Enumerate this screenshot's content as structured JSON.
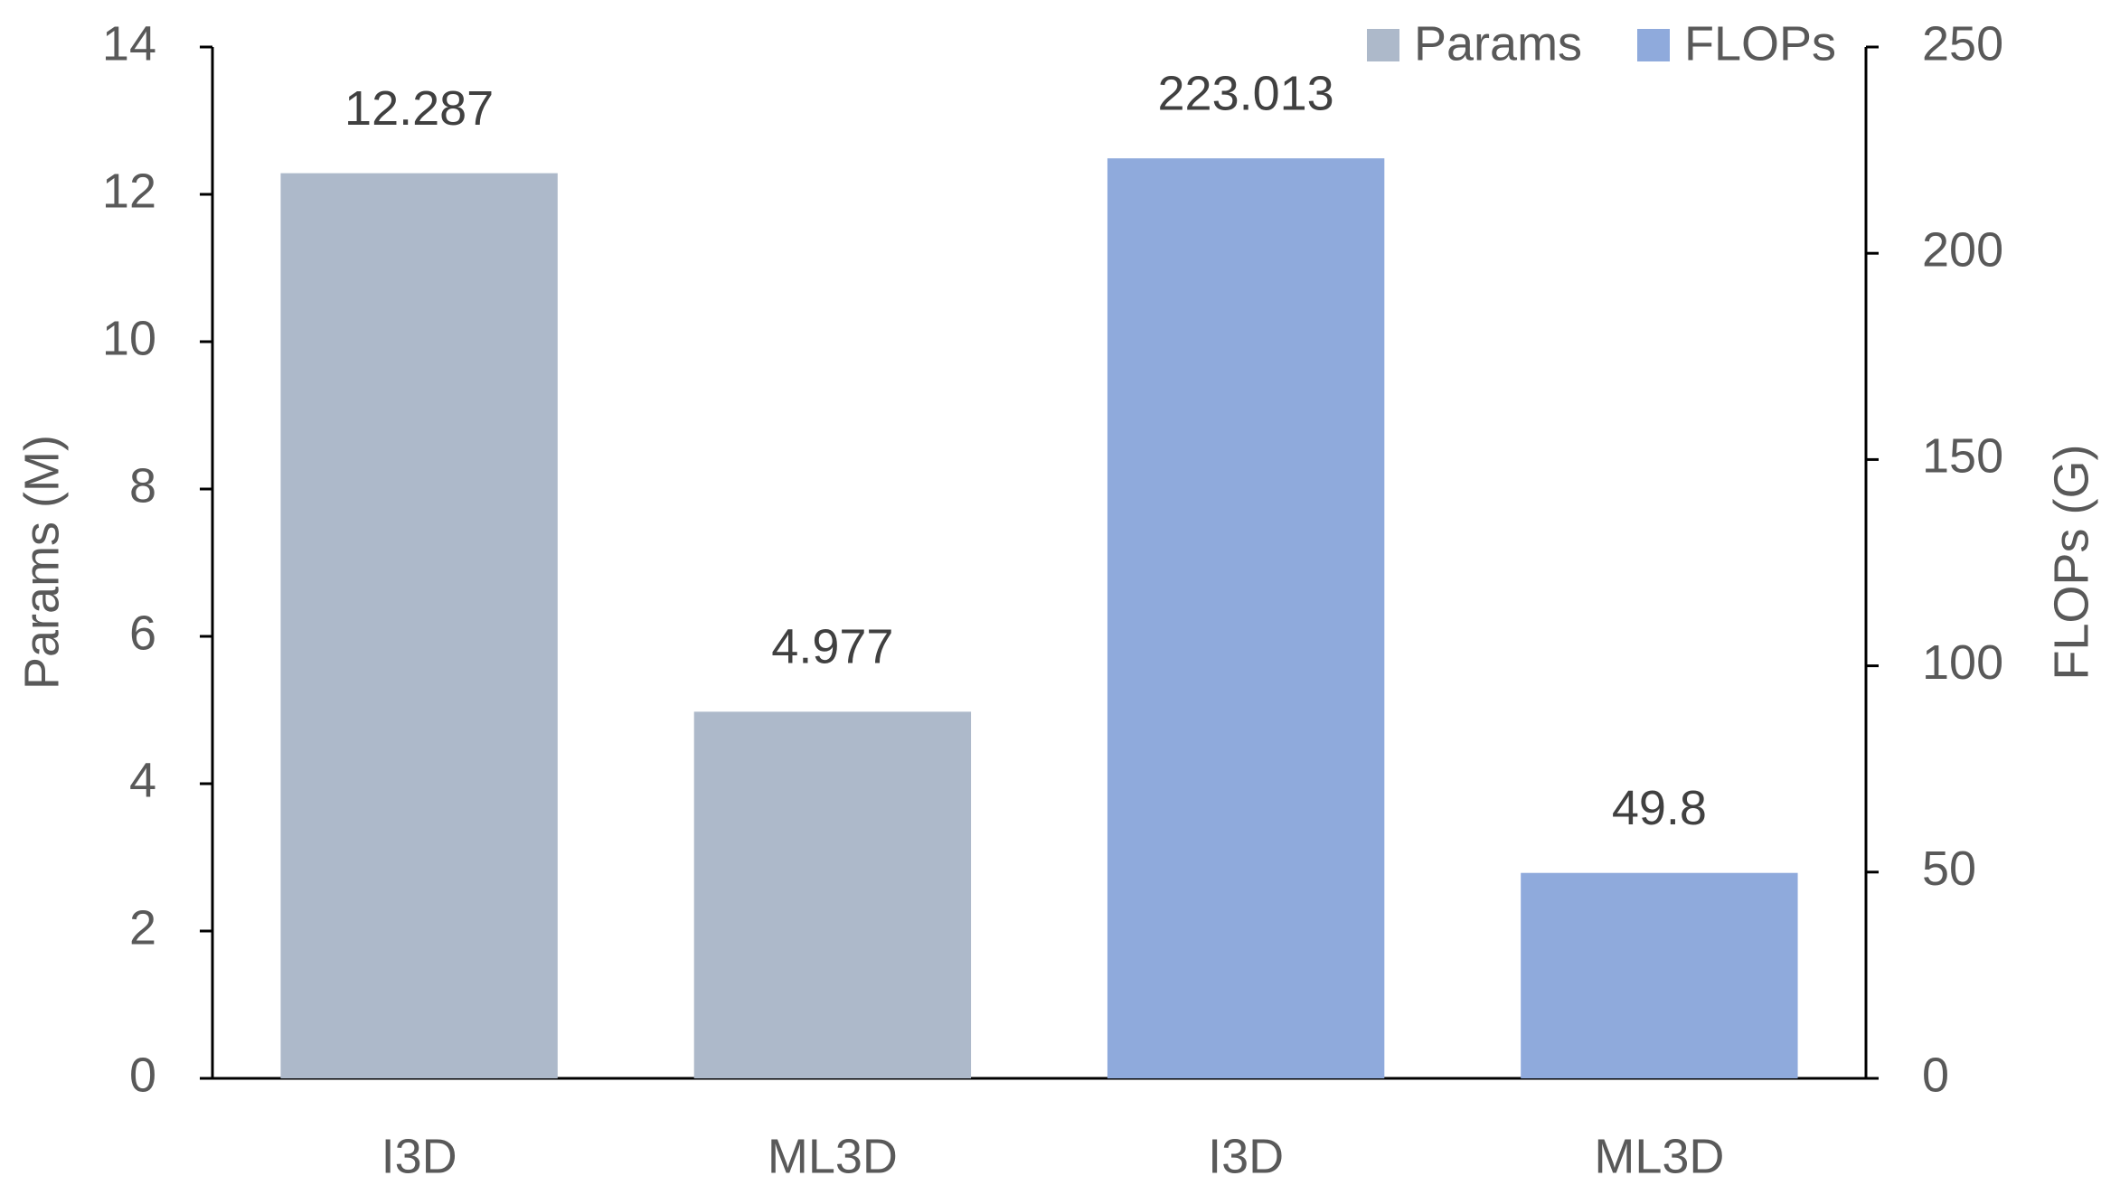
{
  "chart_data": {
    "type": "bar",
    "categories": [
      "I3D",
      "ML3D",
      "I3D",
      "ML3D"
    ],
    "series": [
      {
        "name": "Params",
        "color": "#adb9ca",
        "values": [
          12.287,
          4.977,
          null,
          null
        ]
      },
      {
        "name": "FLOPs",
        "color": "#8faadc",
        "axis": "y2",
        "values": [
          null,
          null,
          223.013,
          49.8
        ]
      }
    ],
    "ylabel": "Params (M)",
    "y2label": "FLOPs (G)",
    "ylim": [
      0,
      14
    ],
    "yticks": [
      0,
      2,
      4,
      6,
      8,
      10,
      12,
      14
    ],
    "y2lim": [
      0,
      250
    ],
    "y2ticks": [
      0,
      50,
      100,
      150,
      200,
      250
    ],
    "legend": "top-right",
    "grid": false
  }
}
